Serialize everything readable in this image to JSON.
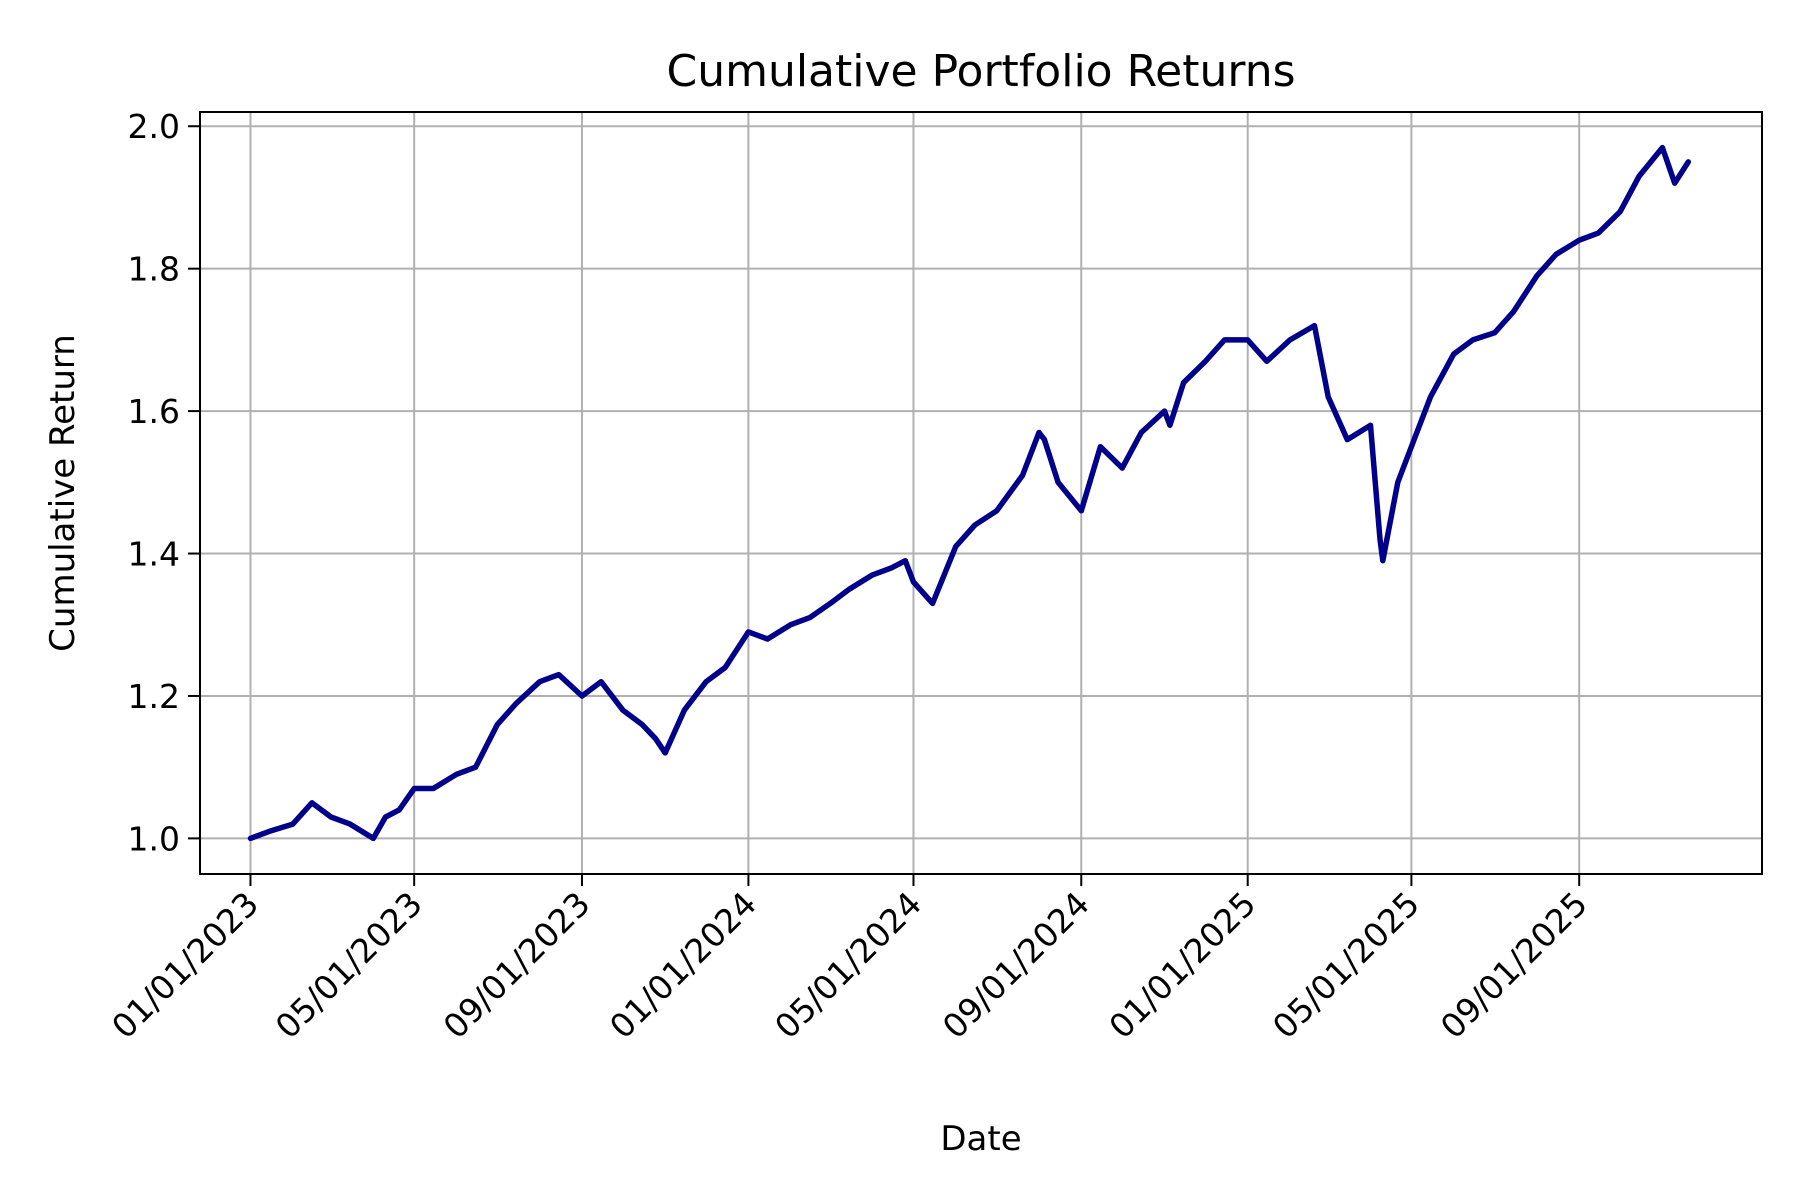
{
  "chart_data": {
    "type": "line",
    "title": "Cumulative Portfolio Returns",
    "xlabel": "Date",
    "ylabel": "Cumulative Return",
    "grid": true,
    "x_ticks": [
      "01/01/2023",
      "05/01/2023",
      "09/01/2023",
      "01/01/2024",
      "05/01/2024",
      "09/01/2024",
      "01/01/2025",
      "05/01/2025",
      "09/01/2025"
    ],
    "y_ticks": [
      "1.0",
      "1.2",
      "1.4",
      "1.6",
      "1.8",
      "2.0"
    ],
    "ylim": [
      0.95,
      2.02
    ],
    "xlim": [
      "2022-11-25",
      "2026-01-13"
    ],
    "colors": {
      "line": "#00008b"
    },
    "series": [
      {
        "x": [
          "2023-01-01",
          "2023-01-15",
          "2023-02-01",
          "2023-02-15",
          "2023-03-01",
          "2023-03-15",
          "2023-04-01",
          "2023-04-10",
          "2023-04-20",
          "2023-05-01",
          "2023-05-15",
          "2023-06-01",
          "2023-06-15",
          "2023-07-01",
          "2023-07-15",
          "2023-08-01",
          "2023-08-15",
          "2023-09-01",
          "2023-09-15",
          "2023-10-01",
          "2023-10-15",
          "2023-10-25",
          "2023-11-01",
          "2023-11-15",
          "2023-12-01",
          "2023-12-15",
          "2024-01-01",
          "2024-01-15",
          "2024-02-01",
          "2024-02-15",
          "2024-03-01",
          "2024-03-15",
          "2024-04-01",
          "2024-04-15",
          "2024-04-25",
          "2024-05-01",
          "2024-05-15",
          "2024-06-01",
          "2024-06-15",
          "2024-07-01",
          "2024-07-20",
          "2024-08-01",
          "2024-08-05",
          "2024-08-15",
          "2024-09-01",
          "2024-09-15",
          "2024-10-01",
          "2024-10-15",
          "2024-11-01",
          "2024-11-05",
          "2024-11-15",
          "2024-12-01",
          "2024-12-15",
          "2025-01-01",
          "2025-01-15",
          "2025-02-01",
          "2025-02-19",
          "2025-03-01",
          "2025-03-15",
          "2025-04-01",
          "2025-04-08",
          "2025-04-10",
          "2025-04-21",
          "2025-05-01",
          "2025-05-15",
          "2025-06-01",
          "2025-06-15",
          "2025-07-01",
          "2025-07-15",
          "2025-08-01",
          "2025-08-15",
          "2025-09-01",
          "2025-09-15",
          "2025-10-01",
          "2025-10-15",
          "2025-11-01",
          "2025-11-10",
          "2025-11-20"
        ],
        "values": [
          1.0,
          1.01,
          1.02,
          1.05,
          1.03,
          1.02,
          1.0,
          1.03,
          1.04,
          1.07,
          1.07,
          1.09,
          1.1,
          1.16,
          1.19,
          1.22,
          1.23,
          1.2,
          1.22,
          1.18,
          1.16,
          1.14,
          1.12,
          1.18,
          1.22,
          1.24,
          1.29,
          1.28,
          1.3,
          1.31,
          1.33,
          1.35,
          1.37,
          1.38,
          1.39,
          1.36,
          1.33,
          1.41,
          1.44,
          1.46,
          1.51,
          1.57,
          1.56,
          1.5,
          1.46,
          1.55,
          1.52,
          1.57,
          1.6,
          1.58,
          1.64,
          1.67,
          1.7,
          1.7,
          1.67,
          1.7,
          1.72,
          1.62,
          1.56,
          1.58,
          1.42,
          1.39,
          1.5,
          1.55,
          1.62,
          1.68,
          1.7,
          1.71,
          1.74,
          1.79,
          1.82,
          1.84,
          1.85,
          1.88,
          1.93,
          1.97,
          1.92,
          1.95
        ]
      }
    ]
  }
}
